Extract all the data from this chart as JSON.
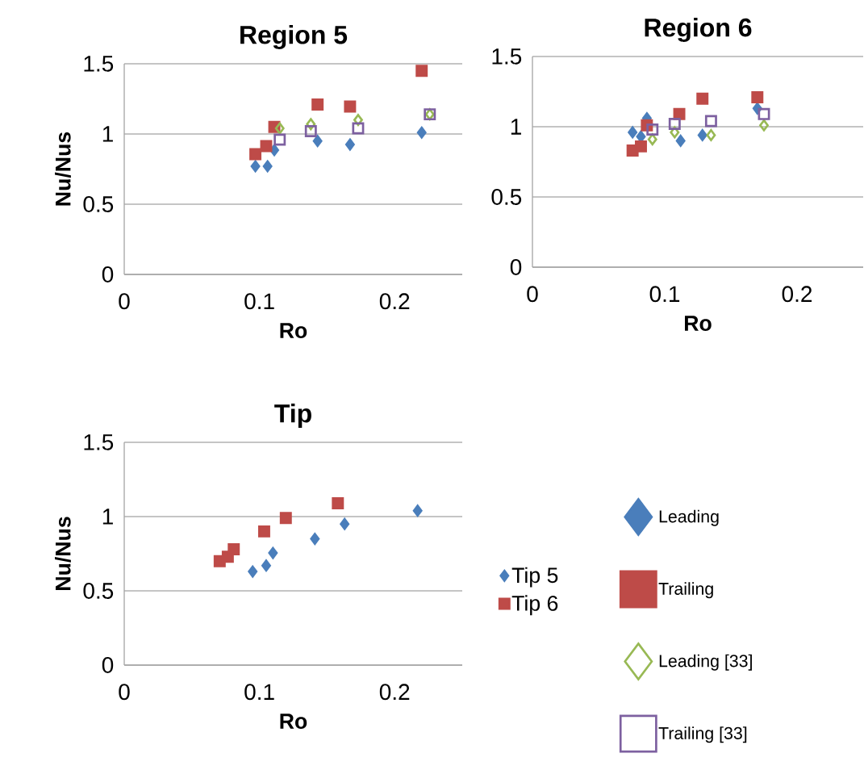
{
  "chart_data": [
    {
      "type": "scatter",
      "title": "Region 5",
      "xlabel": "Ro",
      "ylabel": "Nu/Nus",
      "xlim": [
        0,
        0.25
      ],
      "ylim": [
        0,
        1.5
      ],
      "xticks": [
        0,
        0.1,
        0.2
      ],
      "yticks": [
        0,
        0.5,
        1,
        1.5
      ],
      "grid": "y",
      "legend": false,
      "series": [
        {
          "color": "#4a7ebb",
          "marker": "diamond",
          "x": [
            0.097,
            0.106,
            0.111,
            0.143,
            0.167,
            0.22
          ],
          "values": [
            0.77,
            0.77,
            0.885,
            0.95,
            0.925,
            1.01
          ]
        },
        {
          "color": "#be4b48",
          "marker": "square",
          "x": [
            0.097,
            0.105,
            0.111,
            0.143,
            0.167,
            0.22
          ],
          "values": [
            0.856,
            0.914,
            1.05,
            1.21,
            1.195,
            1.45
          ]
        },
        {
          "color": "#98b954",
          "marker": "diamond",
          "x": [
            0.115,
            0.138,
            0.173,
            0.226
          ],
          "values": [
            1.04,
            1.07,
            1.1,
            1.14
          ]
        },
        {
          "color": "#7d60a0",
          "marker": "square",
          "x": [
            0.115,
            0.138,
            0.173,
            0.226
          ],
          "values": [
            0.96,
            1.02,
            1.04,
            1.14
          ]
        }
      ]
    },
    {
      "type": "scatter",
      "title": "Region 6",
      "xlabel": "Ro",
      "xlim": [
        0,
        0.25
      ],
      "ylim": [
        0,
        1.5
      ],
      "xticks": [
        0,
        0.1,
        0.2
      ],
      "yticks": [
        0,
        0.5,
        1,
        1.5
      ],
      "grid": "y",
      "legend": "bottom",
      "series": [
        {
          "name": "Leading",
          "color": "#4a7ebb",
          "marker": "diamond",
          "x": [
            0.0757,
            0.082,
            0.0865,
            0.112,
            0.1285,
            0.17
          ],
          "values": [
            0.96,
            0.93,
            1.06,
            0.9,
            0.94,
            1.13
          ]
        },
        {
          "name": "Trailing",
          "color": "#be4b48",
          "marker": "square",
          "x": [
            0.0757,
            0.082,
            0.0865,
            0.111,
            0.1285,
            0.17
          ],
          "values": [
            0.83,
            0.86,
            1.01,
            1.09,
            1.2,
            1.21
          ]
        },
        {
          "name": "Leading [33]",
          "color": "#98b954",
          "marker": "diamond",
          "x": [
            0.0907,
            0.1075,
            0.135,
            0.175
          ],
          "values": [
            0.91,
            0.96,
            0.94,
            1.01
          ]
        },
        {
          "name": "Trailing [33]",
          "color": "#7d60a0",
          "marker": "square",
          "x": [
            0.0907,
            0.1075,
            0.135,
            0.175
          ],
          "values": [
            0.98,
            1.02,
            1.04,
            1.09
          ]
        }
      ]
    },
    {
      "type": "scatter",
      "title": "Tip",
      "xlabel": "Ro",
      "ylabel": "Nu/Nus",
      "xlim": [
        0,
        0.25
      ],
      "ylim": [
        0,
        1.5
      ],
      "xticks": [
        0,
        0.1,
        0.2
      ],
      "yticks": [
        0,
        0.5,
        1,
        1.5
      ],
      "grid": "y",
      "legend": "right",
      "series": [
        {
          "name": "Tip 5",
          "color": "#4a7ebb",
          "marker": "diamond",
          "x": [
            0.095,
            0.105,
            0.11,
            0.141,
            0.163,
            0.217
          ],
          "values": [
            0.63,
            0.67,
            0.755,
            0.85,
            0.95,
            1.04
          ]
        },
        {
          "name": "Tip 6",
          "color": "#be4b48",
          "marker": "square",
          "x": [
            0.0706,
            0.0766,
            0.081,
            0.1035,
            0.1195,
            0.158
          ],
          "values": [
            0.7,
            0.73,
            0.78,
            0.9,
            0.99,
            1.09
          ]
        }
      ]
    }
  ]
}
